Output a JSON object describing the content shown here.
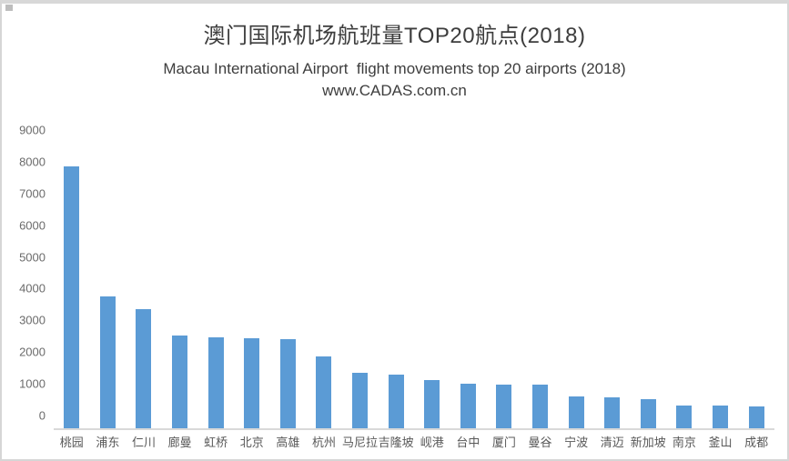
{
  "header": {
    "title": "澳门国际机场航班量TOP20航点(2018)",
    "subtitle": "Macau International Airport  flight movements top 20 airports (2018)",
    "watermark": "www.CADAS.com.cn"
  },
  "chart_data": {
    "type": "bar",
    "title": "澳门国际机场航班量TOP20航点(2018)",
    "subtitle": "Macau International Airport  flight movements top 20 airports (2018)",
    "annotation": "www.CADAS.com.cn",
    "categories": [
      "桃园",
      "浦东",
      "仁川",
      "廊曼",
      "虹桥",
      "北京",
      "高雄",
      "杭州",
      "马尼拉",
      "吉隆坡",
      "岘港",
      "台中",
      "厦门",
      "曼谷",
      "宁波",
      "清迈",
      "新加坡",
      "南京",
      "釜山",
      "成都"
    ],
    "values": [
      8250,
      4150,
      3750,
      2930,
      2870,
      2840,
      2810,
      2260,
      1750,
      1680,
      1510,
      1410,
      1380,
      1370,
      1000,
      975,
      930,
      720,
      720,
      700
    ],
    "xlabel": "",
    "ylabel": "",
    "ylim": [
      0,
      9000
    ],
    "yticks": [
      0,
      1000,
      2000,
      3000,
      4000,
      5000,
      6000,
      7000,
      8000,
      9000
    ],
    "grid": false,
    "legend_position": "none",
    "bar_color": "#5b9bd5",
    "axis_line_color": "#d9d9d9",
    "y_tick_label_color": "#6b6b6b",
    "x_tick_label_color": "#595959",
    "title_color": "#3d3d3d"
  }
}
